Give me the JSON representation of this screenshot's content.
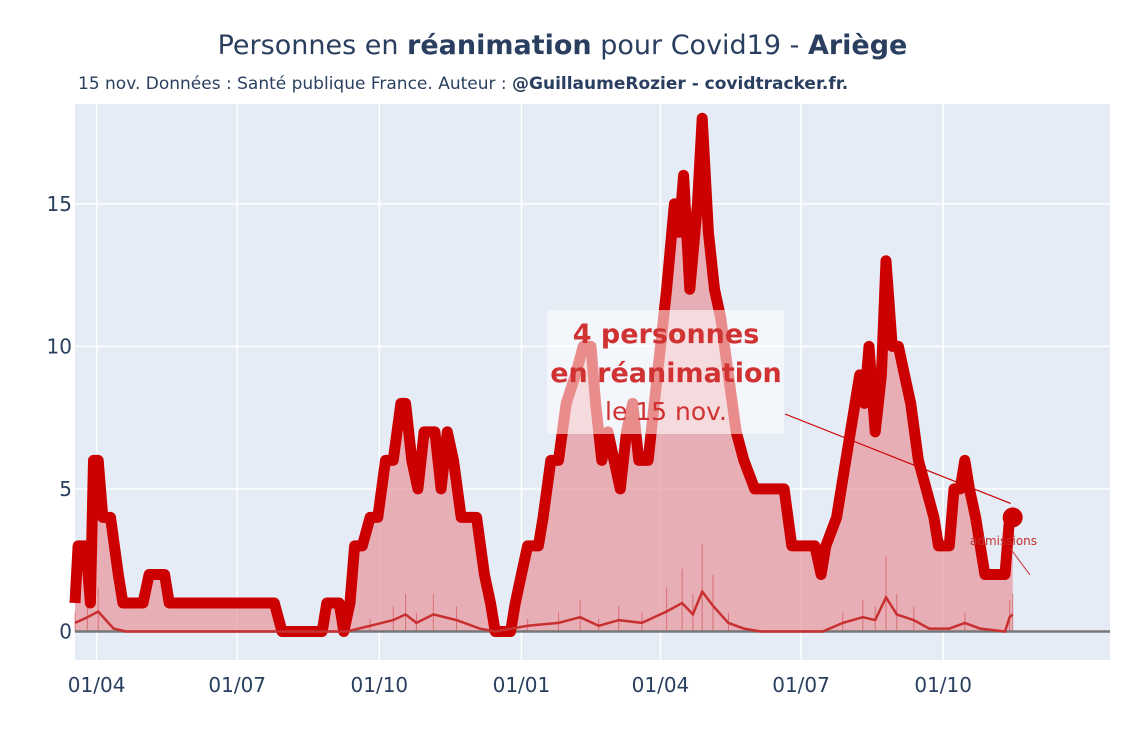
{
  "header": {
    "title_pre": "Personnes en ",
    "title_bold1": "réanimation",
    "title_mid": " pour Covid19 - ",
    "title_bold2": "Ariège",
    "subtitle_pre": "15 nov. Données : Santé publique France. Auteur : ",
    "subtitle_bold": "@GuillaumeRozier - covidtracker.fr."
  },
  "annotation": {
    "line1": "4 personnes",
    "line2": "en réanimation",
    "line3": "le 15 nov."
  },
  "admissions_label": "admissions",
  "colors": {
    "plot_bg": "#e5ecf6",
    "main_line": "#cc0000",
    "area_fill": "#e89aa0",
    "secondary_line": "#c83030",
    "zero_line": "#777777",
    "text": "#2a3f5f"
  },
  "chart_data": {
    "type": "line",
    "title": "Personnes en réanimation pour Covid19 - Ariège",
    "x_unit": "date",
    "x_start": "2020-03-18",
    "x_end": "2021-11-15",
    "xlim": [
      "2020-03-18",
      "2022-01-17"
    ],
    "ylim": [
      -1,
      18.5
    ],
    "yticks": [
      0,
      5,
      10,
      15
    ],
    "xtick_labels": [
      "01/04",
      "01/07",
      "01/10",
      "01/01",
      "01/04",
      "01/07",
      "01/10"
    ],
    "xtick_dates": [
      "2020-04-01",
      "2020-07-01",
      "2020-10-01",
      "2021-01-01",
      "2021-04-01",
      "2021-07-01",
      "2021-10-01"
    ],
    "series": [
      {
        "role": "reanimation",
        "points": [
          [
            "2020-03-18",
            1
          ],
          [
            "2020-03-20",
            3
          ],
          [
            "2020-03-25",
            3
          ],
          [
            "2020-03-28",
            1
          ],
          [
            "2020-03-30",
            6
          ],
          [
            "2020-04-02",
            6
          ],
          [
            "2020-04-05",
            4
          ],
          [
            "2020-04-10",
            4
          ],
          [
            "2020-04-15",
            2
          ],
          [
            "2020-04-18",
            1
          ],
          [
            "2020-05-01",
            1
          ],
          [
            "2020-05-05",
            2
          ],
          [
            "2020-05-15",
            2
          ],
          [
            "2020-05-18",
            1
          ],
          [
            "2020-06-20",
            1
          ],
          [
            "2020-07-25",
            1
          ],
          [
            "2020-07-30",
            0
          ],
          [
            "2020-08-25",
            0
          ],
          [
            "2020-08-28",
            1
          ],
          [
            "2020-09-05",
            1
          ],
          [
            "2020-09-08",
            0
          ],
          [
            "2020-09-12",
            1
          ],
          [
            "2020-09-15",
            3
          ],
          [
            "2020-09-20",
            3
          ],
          [
            "2020-09-25",
            4
          ],
          [
            "2020-09-30",
            4
          ],
          [
            "2020-10-05",
            6
          ],
          [
            "2020-10-10",
            6
          ],
          [
            "2020-10-15",
            8
          ],
          [
            "2020-10-18",
            8
          ],
          [
            "2020-10-22",
            6
          ],
          [
            "2020-10-26",
            5
          ],
          [
            "2020-10-30",
            7
          ],
          [
            "2020-11-06",
            7
          ],
          [
            "2020-11-10",
            5
          ],
          [
            "2020-11-14",
            7
          ],
          [
            "2020-11-18",
            6
          ],
          [
            "2020-11-23",
            4
          ],
          [
            "2020-12-03",
            4
          ],
          [
            "2020-12-08",
            2
          ],
          [
            "2020-12-12",
            1
          ],
          [
            "2020-12-15",
            0
          ],
          [
            "2020-12-25",
            0
          ],
          [
            "2020-12-28",
            1
          ],
          [
            "2021-01-01",
            2
          ],
          [
            "2021-01-05",
            3
          ],
          [
            "2021-01-12",
            3
          ],
          [
            "2021-01-15",
            4
          ],
          [
            "2021-01-20",
            6
          ],
          [
            "2021-01-25",
            6
          ],
          [
            "2021-01-30",
            8
          ],
          [
            "2021-02-05",
            9
          ],
          [
            "2021-02-10",
            10
          ],
          [
            "2021-02-15",
            10
          ],
          [
            "2021-02-18",
            8
          ],
          [
            "2021-02-22",
            6
          ],
          [
            "2021-02-26",
            7
          ],
          [
            "2021-03-02",
            6
          ],
          [
            "2021-03-06",
            5
          ],
          [
            "2021-03-10",
            7
          ],
          [
            "2021-03-14",
            8
          ],
          [
            "2021-03-18",
            6
          ],
          [
            "2021-03-24",
            6
          ],
          [
            "2021-03-28",
            8
          ],
          [
            "2021-04-01",
            10
          ],
          [
            "2021-04-05",
            12
          ],
          [
            "2021-04-10",
            15
          ],
          [
            "2021-04-13",
            14
          ],
          [
            "2021-04-16",
            16
          ],
          [
            "2021-04-20",
            12
          ],
          [
            "2021-04-25",
            15
          ],
          [
            "2021-04-28",
            18
          ],
          [
            "2021-05-02",
            14
          ],
          [
            "2021-05-06",
            12
          ],
          [
            "2021-05-10",
            11
          ],
          [
            "2021-05-15",
            9
          ],
          [
            "2021-05-20",
            7
          ],
          [
            "2021-05-25",
            6
          ],
          [
            "2021-06-01",
            5
          ],
          [
            "2021-06-20",
            5
          ],
          [
            "2021-06-25",
            3
          ],
          [
            "2021-07-10",
            3
          ],
          [
            "2021-07-14",
            2
          ],
          [
            "2021-07-17",
            3
          ],
          [
            "2021-07-24",
            4
          ],
          [
            "2021-07-30",
            6
          ],
          [
            "2021-08-05",
            8
          ],
          [
            "2021-08-08",
            9
          ],
          [
            "2021-08-11",
            8
          ],
          [
            "2021-08-14",
            10
          ],
          [
            "2021-08-18",
            7
          ],
          [
            "2021-08-22",
            9
          ],
          [
            "2021-08-25",
            13
          ],
          [
            "2021-08-29",
            10
          ],
          [
            "2021-09-02",
            10
          ],
          [
            "2021-09-06",
            9
          ],
          [
            "2021-09-10",
            8
          ],
          [
            "2021-09-15",
            6
          ],
          [
            "2021-09-20",
            5
          ],
          [
            "2021-09-25",
            4
          ],
          [
            "2021-09-28",
            3
          ],
          [
            "2021-10-05",
            3
          ],
          [
            "2021-10-08",
            5
          ],
          [
            "2021-10-12",
            5
          ],
          [
            "2021-10-15",
            6
          ],
          [
            "2021-10-18",
            5
          ],
          [
            "2021-10-22",
            4
          ],
          [
            "2021-10-25",
            3
          ],
          [
            "2021-10-28",
            2
          ],
          [
            "2021-11-10",
            2
          ],
          [
            "2021-11-13",
            4
          ],
          [
            "2021-11-15",
            4
          ]
        ]
      },
      {
        "role": "admissions",
        "name": "admissions",
        "points": [
          [
            "2020-03-18",
            0.3
          ],
          [
            "2020-03-26",
            0.5
          ],
          [
            "2020-04-02",
            0.7
          ],
          [
            "2020-04-12",
            0.1
          ],
          [
            "2020-04-20",
            0
          ],
          [
            "2020-09-10",
            0
          ],
          [
            "2020-09-25",
            0.2
          ],
          [
            "2020-10-10",
            0.4
          ],
          [
            "2020-10-18",
            0.6
          ],
          [
            "2020-10-25",
            0.3
          ],
          [
            "2020-11-05",
            0.6
          ],
          [
            "2020-11-20",
            0.4
          ],
          [
            "2020-12-05",
            0.1
          ],
          [
            "2020-12-15",
            0
          ],
          [
            "2021-01-05",
            0.2
          ],
          [
            "2021-01-25",
            0.3
          ],
          [
            "2021-02-08",
            0.5
          ],
          [
            "2021-02-20",
            0.2
          ],
          [
            "2021-03-05",
            0.4
          ],
          [
            "2021-03-20",
            0.3
          ],
          [
            "2021-04-05",
            0.7
          ],
          [
            "2021-04-15",
            1.0
          ],
          [
            "2021-04-22",
            0.6
          ],
          [
            "2021-04-28",
            1.4
          ],
          [
            "2021-05-05",
            0.9
          ],
          [
            "2021-05-15",
            0.3
          ],
          [
            "2021-05-25",
            0.1
          ],
          [
            "2021-06-05",
            0
          ],
          [
            "2021-07-15",
            0
          ],
          [
            "2021-07-28",
            0.3
          ],
          [
            "2021-08-10",
            0.5
          ],
          [
            "2021-08-18",
            0.4
          ],
          [
            "2021-08-25",
            1.2
          ],
          [
            "2021-09-01",
            0.6
          ],
          [
            "2021-09-12",
            0.4
          ],
          [
            "2021-09-22",
            0.1
          ],
          [
            "2021-10-05",
            0.1
          ],
          [
            "2021-10-15",
            0.3
          ],
          [
            "2021-10-25",
            0.1
          ],
          [
            "2021-11-10",
            0
          ],
          [
            "2021-11-13",
            0.5
          ],
          [
            "2021-11-15",
            0.6
          ]
        ]
      }
    ]
  }
}
